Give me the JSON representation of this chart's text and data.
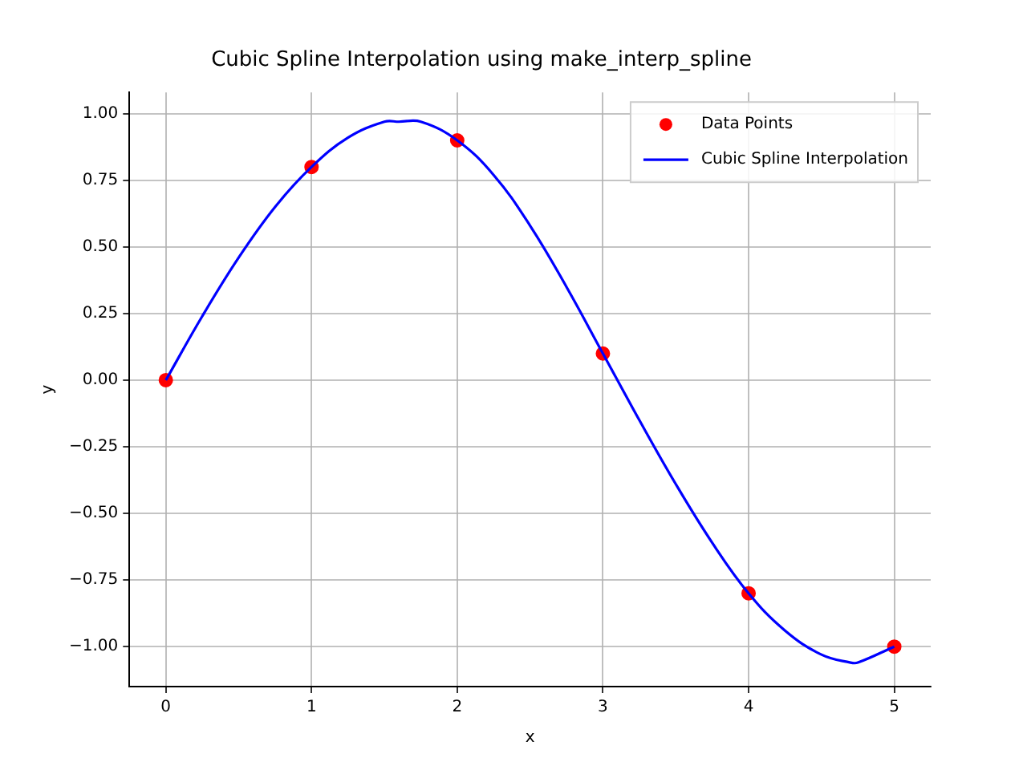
{
  "chart_data": {
    "type": "scatter",
    "title": "Cubic Spline Interpolation using make_interp_spline",
    "xlabel": "x",
    "ylabel": "y",
    "xlim": [
      -0.25,
      5.25
    ],
    "xticks": [
      0,
      1,
      2,
      3,
      4,
      5
    ],
    "ylim": [
      -1.15,
      1.08
    ],
    "yticks": [
      {
        "value": -1,
        "label": "−1.00"
      },
      {
        "value": -0.75,
        "label": "−0.75"
      },
      {
        "value": -0.5,
        "label": "−0.50"
      },
      {
        "value": -0.25,
        "label": "−0.25"
      },
      {
        "value": 0,
        "label": "0.00"
      },
      {
        "value": 0.25,
        "label": "0.25"
      },
      {
        "value": 0.5,
        "label": "0.50"
      },
      {
        "value": 0.75,
        "label": "0.75"
      },
      {
        "value": 1,
        "label": "1.00"
      }
    ],
    "grid": true,
    "legend": "top right",
    "series": [
      {
        "name": "Data Points",
        "type": "scatter",
        "marker": "circle",
        "color": "#ff0000",
        "x": [
          0,
          1,
          2,
          3,
          4,
          5
        ],
        "values": [
          0,
          0.8,
          0.9,
          0.1,
          -0.8,
          -1
        ]
      },
      {
        "name": "Cubic Spline Interpolation",
        "type": "line",
        "marker": "none",
        "color": "#0000ff",
        "x": [
          0,
          0.25,
          0.5,
          0.75,
          1,
          1.25,
          1.5,
          1.6,
          1.75,
          2,
          2.25,
          2.5,
          2.75,
          3,
          3.25,
          3.5,
          3.75,
          4,
          4.25,
          4.5,
          4.7,
          4.75,
          5
        ],
        "values": [
          0,
          0.24,
          0.46,
          0.65,
          0.8,
          0.91,
          0.97,
          0.97,
          0.97,
          0.9,
          0.77,
          0.58,
          0.35,
          0.1,
          -0.15,
          -0.39,
          -0.61,
          -0.8,
          -0.94,
          -1.03,
          -1.06,
          -1.06,
          -1
        ]
      }
    ]
  }
}
